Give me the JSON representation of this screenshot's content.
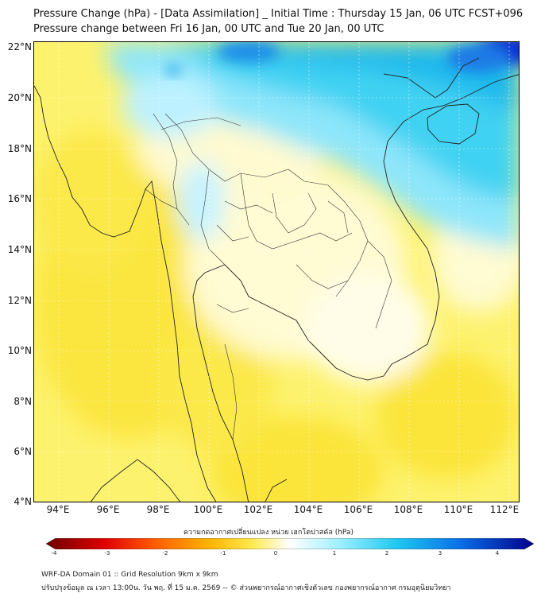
{
  "title_line1": "Pressure Change (hPa) - [Data Assimilation] _ Initial Time : Thursday 15 Jan, 06 UTC FCST+096",
  "title_line2": "Pressure change between Fri 16 Jan, 00 UTC and Tue 20 Jan, 00 UTC",
  "lat_ticks": [
    "22°N",
    "20°N",
    "18°N",
    "16°N",
    "14°N",
    "12°N",
    "10°N",
    "8°N",
    "6°N",
    "4°N"
  ],
  "lon_ticks": [
    "94°E",
    "96°E",
    "98°E",
    "100°E",
    "102°E",
    "104°E",
    "106°E",
    "108°E",
    "110°E",
    "112°E"
  ],
  "colorbar": {
    "label": "ความกดอากาศเปลี่ยนแปลง หน่วย เฮกโตปาสคัล (hPa)",
    "ticks": [
      "-4",
      "-3",
      "-2",
      "-1",
      "0",
      "1",
      "2",
      "3",
      "4"
    ],
    "range": [
      -4,
      4
    ]
  },
  "colors": {
    "negative_strong": "#8b0000",
    "negative_mid": "#ff3a00",
    "negative_weak": "#ffd21a",
    "near_zero": "#fff7c0",
    "zero": "#ffffff",
    "positive_weak": "#bff0ff",
    "positive_mid": "#1ec8f0",
    "positive_strong": "#0000c8",
    "field_dominant": "#fdf26e",
    "coastline": "#222222"
  },
  "footer_line1": "WRF-DA Domain 01 :: Grid Resolution 9km x 9km",
  "footer_line2": "ปรับปรุงข้อมูล ณ เวลา 13:00น. วัน พฤ. ที่ 15 ม.ค. 2569 -- © ส่วนพยากรณ์อากาศเชิงตัวเลข กองพยากรณ์อากาศ กรมอุตุนิยมวิทยา"
}
